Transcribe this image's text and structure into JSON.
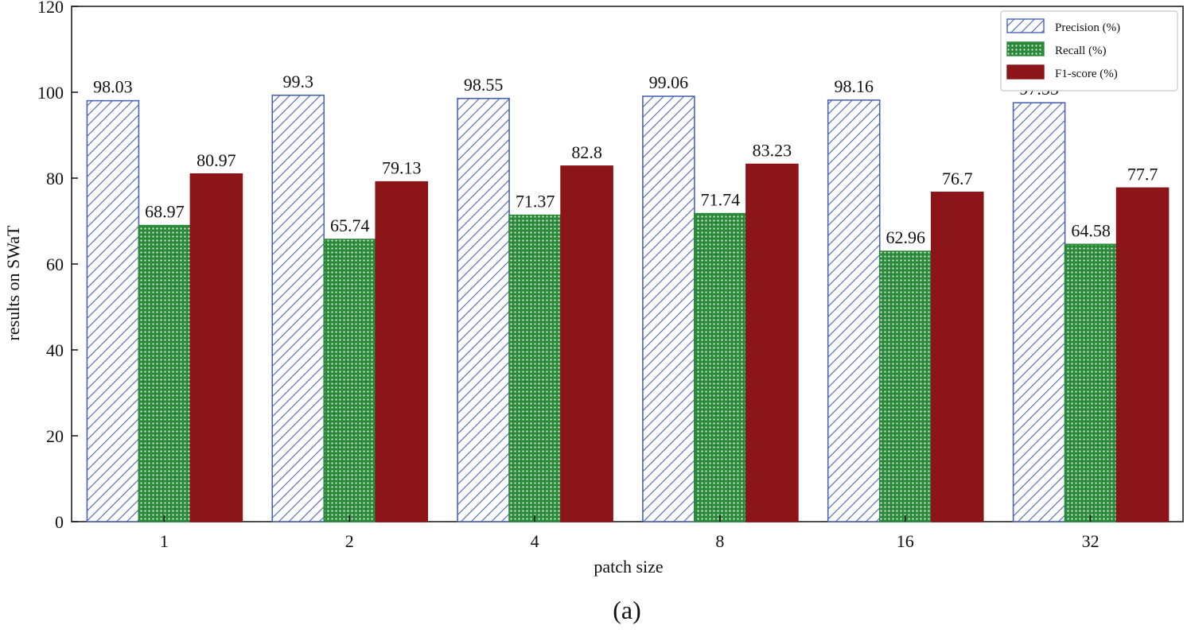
{
  "chart_data": {
    "type": "bar",
    "categories": [
      "1",
      "2",
      "4",
      "8",
      "16",
      "32"
    ],
    "series": [
      {
        "name": "Precision (%)",
        "values": [
          98.03,
          99.3,
          98.55,
          99.06,
          98.16,
          97.55
        ],
        "color": "#4a63b8",
        "fill": "hatch"
      },
      {
        "name": "Recall (%)",
        "values": [
          68.97,
          65.74,
          71.37,
          71.74,
          62.96,
          64.58
        ],
        "color": "#2a8a3a",
        "fill": "dots"
      },
      {
        "name": "F1-score (%)",
        "values": [
          80.97,
          79.13,
          82.8,
          83.23,
          76.7,
          77.7
        ],
        "color": "#8b1518",
        "fill": "solid"
      }
    ],
    "data_labels": [
      [
        "98.03",
        "99.3",
        "98.55",
        "99.06",
        "98.16",
        "97.55"
      ],
      [
        "68.97",
        "65.74",
        "71.37",
        "71.74",
        "62.96",
        "64.58"
      ],
      [
        "80.97",
        "79.13",
        "82.8",
        "83.23",
        "76.7",
        "77.7"
      ]
    ],
    "xlabel": "patch size",
    "ylabel": "results on SWaT",
    "ylim": [
      0,
      120
    ],
    "yticks": [
      "0",
      "20",
      "40",
      "60",
      "80",
      "100",
      "120"
    ],
    "grid": false,
    "legend_position": "top-right"
  },
  "caption": "(a)"
}
